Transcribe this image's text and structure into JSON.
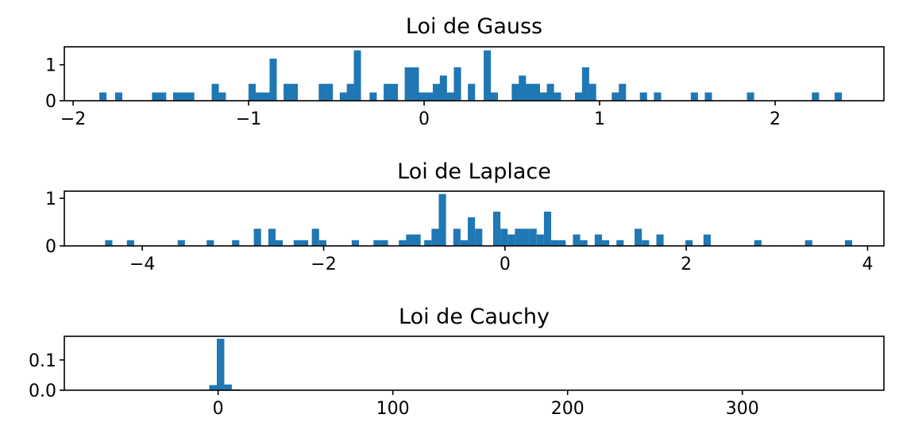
{
  "figure": {
    "bar_color": "#1f77b4"
  },
  "chart_data": [
    {
      "type": "bar",
      "title": "Loi de Gauss",
      "xlim": [
        -2.05,
        2.62
      ],
      "ylim": [
        0,
        1.5
      ],
      "xticks": [
        -2,
        -1,
        0,
        1,
        2
      ],
      "xtick_labels": [
        "−2",
        "−1",
        "0",
        "1",
        "2"
      ],
      "yticks": [
        0,
        1
      ],
      "ytick_labels": [
        "0",
        "1"
      ],
      "bin_width": 0.041,
      "bins": [
        {
          "x": -1.83,
          "y": 0.23
        },
        {
          "x": -1.74,
          "y": 0.23
        },
        {
          "x": -1.53,
          "y": 0.23
        },
        {
          "x": -1.49,
          "y": 0.23
        },
        {
          "x": -1.41,
          "y": 0.23
        },
        {
          "x": -1.37,
          "y": 0.23
        },
        {
          "x": -1.33,
          "y": 0.23
        },
        {
          "x": -1.19,
          "y": 0.47
        },
        {
          "x": -1.15,
          "y": 0.23
        },
        {
          "x": -0.98,
          "y": 0.47
        },
        {
          "x": -0.94,
          "y": 0.23
        },
        {
          "x": -0.9,
          "y": 0.23
        },
        {
          "x": -0.86,
          "y": 1.17
        },
        {
          "x": -0.78,
          "y": 0.47
        },
        {
          "x": -0.74,
          "y": 0.47
        },
        {
          "x": -0.58,
          "y": 0.47
        },
        {
          "x": -0.54,
          "y": 0.47
        },
        {
          "x": -0.46,
          "y": 0.23
        },
        {
          "x": -0.42,
          "y": 0.47
        },
        {
          "x": -0.38,
          "y": 1.4
        },
        {
          "x": -0.29,
          "y": 0.23
        },
        {
          "x": -0.21,
          "y": 0.47
        },
        {
          "x": -0.17,
          "y": 0.47
        },
        {
          "x": -0.09,
          "y": 0.93
        },
        {
          "x": -0.05,
          "y": 0.93
        },
        {
          "x": -0.01,
          "y": 0.23
        },
        {
          "x": 0.03,
          "y": 0.23
        },
        {
          "x": 0.07,
          "y": 0.47
        },
        {
          "x": 0.11,
          "y": 0.7
        },
        {
          "x": 0.15,
          "y": 0.23
        },
        {
          "x": 0.19,
          "y": 0.93
        },
        {
          "x": 0.27,
          "y": 0.47
        },
        {
          "x": 0.36,
          "y": 1.4
        },
        {
          "x": 0.4,
          "y": 0.23
        },
        {
          "x": 0.52,
          "y": 0.47
        },
        {
          "x": 0.56,
          "y": 0.7
        },
        {
          "x": 0.6,
          "y": 0.47
        },
        {
          "x": 0.64,
          "y": 0.47
        },
        {
          "x": 0.68,
          "y": 0.23
        },
        {
          "x": 0.72,
          "y": 0.47
        },
        {
          "x": 0.76,
          "y": 0.23
        },
        {
          "x": 0.88,
          "y": 0.23
        },
        {
          "x": 0.92,
          "y": 0.93
        },
        {
          "x": 0.96,
          "y": 0.47
        },
        {
          "x": 1.09,
          "y": 0.23
        },
        {
          "x": 1.13,
          "y": 0.47
        },
        {
          "x": 1.25,
          "y": 0.23
        },
        {
          "x": 1.33,
          "y": 0.23
        },
        {
          "x": 1.54,
          "y": 0.23
        },
        {
          "x": 1.62,
          "y": 0.23
        },
        {
          "x": 1.86,
          "y": 0.23
        },
        {
          "x": 2.23,
          "y": 0.23
        },
        {
          "x": 2.36,
          "y": 0.23
        }
      ]
    },
    {
      "type": "bar",
      "title": "Loi de Laplace",
      "xlim": [
        -4.86,
        4.18
      ],
      "ylim": [
        0,
        1.15
      ],
      "xticks": [
        -4,
        -2,
        0,
        2,
        4
      ],
      "xtick_labels": [
        "−4",
        "−2",
        "0",
        "2",
        "4"
      ],
      "yticks": [
        0,
        1
      ],
      "ytick_labels": [
        "0",
        "1"
      ],
      "bin_width": 0.08,
      "bins": [
        {
          "x": -4.37,
          "y": 0.12
        },
        {
          "x": -4.13,
          "y": 0.12
        },
        {
          "x": -3.57,
          "y": 0.12
        },
        {
          "x": -3.25,
          "y": 0.12
        },
        {
          "x": -2.97,
          "y": 0.12
        },
        {
          "x": -2.73,
          "y": 0.36
        },
        {
          "x": -2.57,
          "y": 0.36
        },
        {
          "x": -2.49,
          "y": 0.12
        },
        {
          "x": -2.29,
          "y": 0.12
        },
        {
          "x": -2.21,
          "y": 0.12
        },
        {
          "x": -2.09,
          "y": 0.36
        },
        {
          "x": -2.01,
          "y": 0.12
        },
        {
          "x": -1.65,
          "y": 0.12
        },
        {
          "x": -1.41,
          "y": 0.12
        },
        {
          "x": -1.33,
          "y": 0.12
        },
        {
          "x": -1.13,
          "y": 0.12
        },
        {
          "x": -1.05,
          "y": 0.24
        },
        {
          "x": -0.97,
          "y": 0.24
        },
        {
          "x": -0.85,
          "y": 0.12
        },
        {
          "x": -0.77,
          "y": 0.36
        },
        {
          "x": -0.69,
          "y": 1.09
        },
        {
          "x": -0.53,
          "y": 0.36
        },
        {
          "x": -0.45,
          "y": 0.12
        },
        {
          "x": -0.37,
          "y": 0.6
        },
        {
          "x": -0.29,
          "y": 0.36
        },
        {
          "x": -0.09,
          "y": 0.72
        },
        {
          "x": -0.01,
          "y": 0.36
        },
        {
          "x": 0.07,
          "y": 0.24
        },
        {
          "x": 0.15,
          "y": 0.36
        },
        {
          "x": 0.23,
          "y": 0.36
        },
        {
          "x": 0.31,
          "y": 0.36
        },
        {
          "x": 0.39,
          "y": 0.24
        },
        {
          "x": 0.47,
          "y": 0.72
        },
        {
          "x": 0.55,
          "y": 0.12
        },
        {
          "x": 0.63,
          "y": 0.12
        },
        {
          "x": 0.79,
          "y": 0.24
        },
        {
          "x": 0.87,
          "y": 0.12
        },
        {
          "x": 1.03,
          "y": 0.24
        },
        {
          "x": 1.11,
          "y": 0.12
        },
        {
          "x": 1.27,
          "y": 0.12
        },
        {
          "x": 1.47,
          "y": 0.36
        },
        {
          "x": 1.55,
          "y": 0.12
        },
        {
          "x": 1.71,
          "y": 0.24
        },
        {
          "x": 2.03,
          "y": 0.12
        },
        {
          "x": 2.23,
          "y": 0.24
        },
        {
          "x": 2.79,
          "y": 0.12
        },
        {
          "x": 3.35,
          "y": 0.12
        },
        {
          "x": 3.79,
          "y": 0.12
        }
      ]
    },
    {
      "type": "bar",
      "title": "Loi de Cauchy",
      "xlim": [
        -88,
        381
      ],
      "ylim": [
        0,
        0.178
      ],
      "xticks": [
        0,
        100,
        200,
        300
      ],
      "xtick_labels": [
        "0",
        "100",
        "200",
        "300"
      ],
      "yticks": [
        0,
        0.1
      ],
      "ytick_labels": [
        "0.0",
        "0.1"
      ],
      "bin_width": 4.3,
      "bins": [
        {
          "x": -7.2,
          "y": 0.002
        },
        {
          "x": -2.9,
          "y": 0.017
        },
        {
          "x": 1.4,
          "y": 0.17
        },
        {
          "x": 5.7,
          "y": 0.019
        },
        {
          "x": 10.0,
          "y": 0.003
        }
      ]
    }
  ]
}
